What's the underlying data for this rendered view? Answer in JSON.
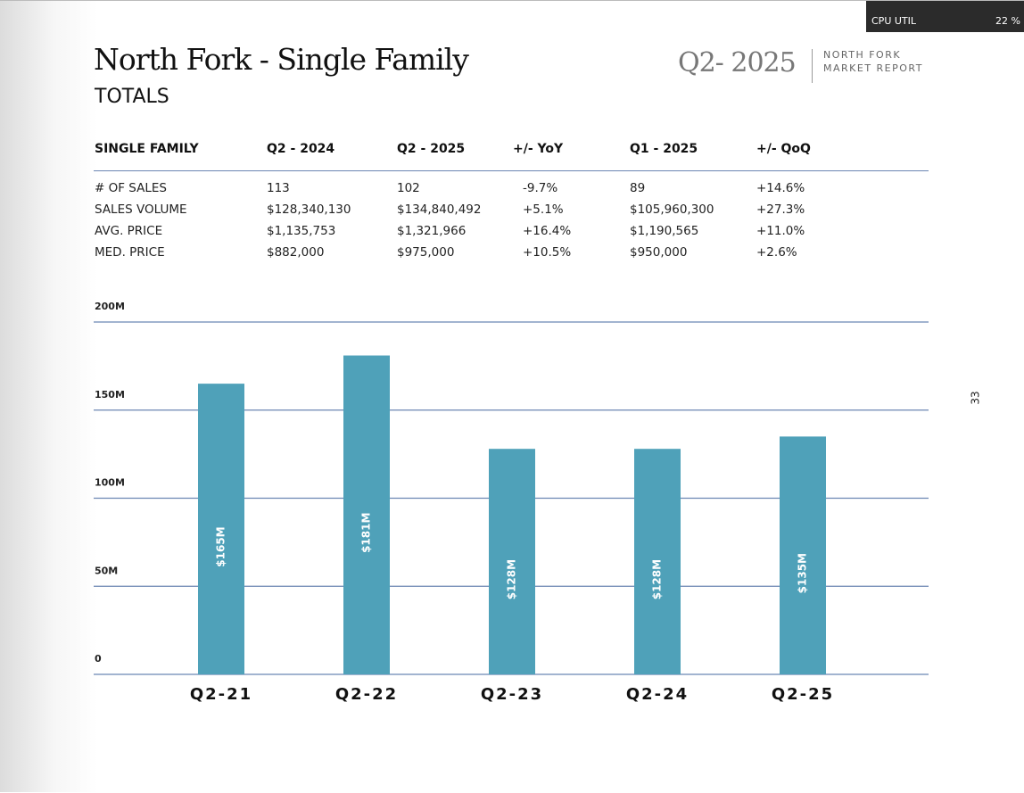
{
  "header": {
    "title": "North Fork - Single Family",
    "subtitle": "TOTALS",
    "quarter": "Q2- 2025",
    "report": [
      "NORTH FORK",
      "MARKET REPORT"
    ]
  },
  "table": {
    "columns": [
      "SINGLE FAMILY",
      "Q2 - 2024",
      "Q2 - 2025",
      "+/- YoY",
      "Q1 - 2025",
      "+/- QoQ"
    ],
    "rows": [
      [
        "# OF SALES",
        "113",
        "102",
        "-9.7%",
        "89",
        "+14.6%"
      ],
      [
        "SALES VOLUME",
        "$128,340,130",
        "$134,840,492",
        "+5.1%",
        "$105,960,300",
        "+27.3%"
      ],
      [
        "AVG. PRICE",
        "$1,135,753",
        "$1,321,966",
        "+16.4%",
        "$1,190,565",
        "+11.0%"
      ],
      [
        "MED. PRICE",
        "$882,000",
        "$975,000",
        "+10.5%",
        "$950,000",
        "+2.6%"
      ]
    ]
  },
  "chart_data": {
    "type": "bar",
    "categories": [
      "Q2-21",
      "Q2-22",
      "Q2-23",
      "Q2-24",
      "Q2-25"
    ],
    "values": [
      165,
      181,
      128,
      128,
      135
    ],
    "value_labels": [
      "$165M",
      "$181M",
      "$128M",
      "$128M",
      "$135M"
    ],
    "color": "#4fa1b9",
    "ylim": [
      0,
      200
    ],
    "yticks": [
      0,
      {
        "value": 50,
        "label": "50M"
      },
      {
        "value": 100,
        "label": "100M"
      },
      {
        "value": 150,
        "label": "150M"
      },
      {
        "value": 200,
        "label": "200M"
      }
    ],
    "grid": true
  },
  "page_number": "33",
  "overlay": {
    "label": "CPU UTIL",
    "value": "22 %"
  }
}
